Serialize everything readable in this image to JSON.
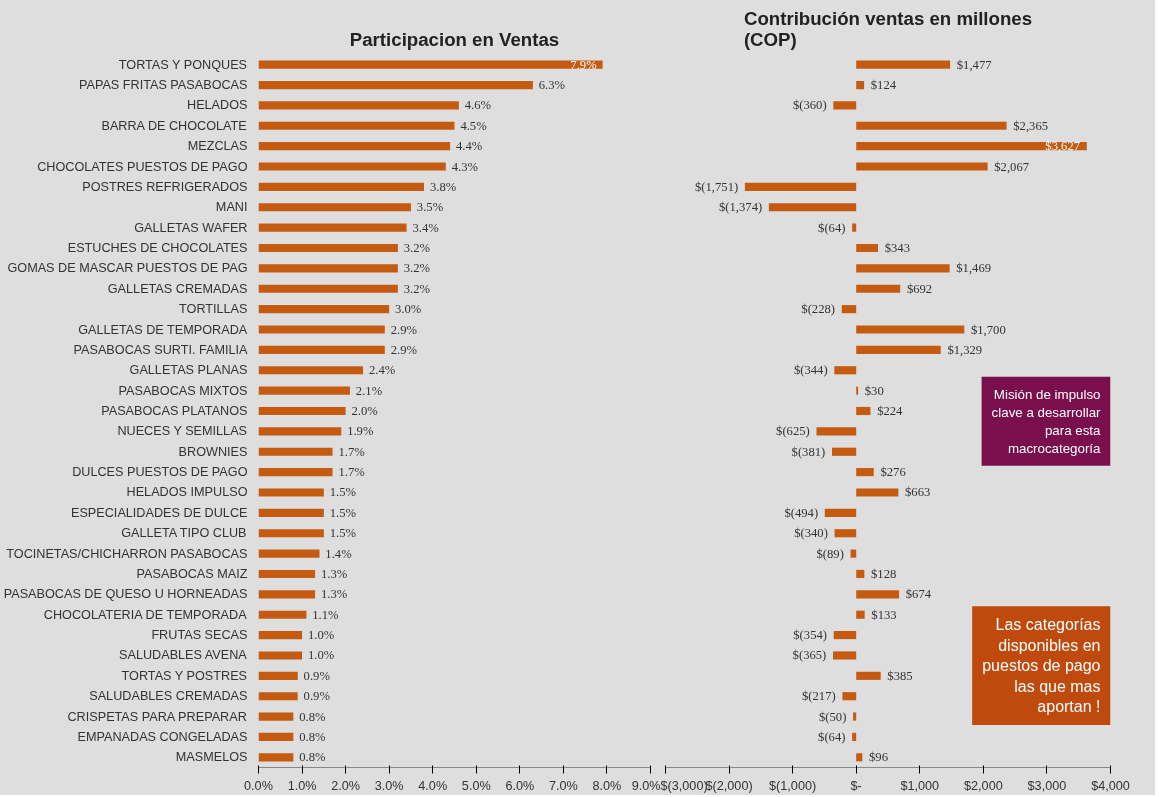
{
  "chart_data": [
    {
      "type": "bar",
      "orientation": "horizontal",
      "title": "Participacion en Ventas",
      "categories": [
        "TORTAS Y PONQUES",
        "PAPAS FRITAS PASABOCAS",
        "HELADOS",
        "BARRA DE CHOCOLATE",
        "MEZCLAS",
        "CHOCOLATES PUESTOS DE PAGO",
        "POSTRES REFRIGERADOS",
        "MANI",
        "GALLETAS WAFER",
        "ESTUCHES DE CHOCOLATES",
        "GOMAS DE MASCAR PUESTOS DE PAG",
        "GALLETAS CREMADAS",
        "TORTILLAS",
        "GALLETAS DE TEMPORADA",
        "PASABOCAS SURTI. FAMILIA",
        "GALLETAS PLANAS",
        "PASABOCAS MIXTOS",
        "PASABOCAS PLATANOS",
        "NUECES Y SEMILLAS",
        "BROWNIES",
        "DULCES PUESTOS DE PAGO",
        "HELADOS IMPULSO",
        "ESPECIALIDADES DE DULCE",
        "GALLETA TIPO CLUB",
        "TOCINETAS/CHICHARRON PASABOCAS",
        "PASABOCAS MAIZ",
        "PASABOCAS DE QUESO U HORNEADAS",
        "CHOCOLATERIA DE TEMPORADA",
        "FRUTAS SECAS",
        "SALUDABLES AVENA",
        "TORTAS Y POSTRES",
        "SALUDABLES CREMADAS",
        "CRISPETAS PARA PREPARAR",
        "EMPANADAS CONGELADAS",
        "MASMELOS"
      ],
      "color": "#c55a11",
      "values": [
        7.9,
        6.3,
        4.6,
        4.5,
        4.4,
        4.3,
        3.8,
        3.5,
        3.4,
        3.2,
        3.2,
        3.2,
        3.0,
        2.9,
        2.9,
        2.4,
        2.1,
        2.0,
        1.9,
        1.7,
        1.7,
        1.5,
        1.5,
        1.5,
        1.4,
        1.3,
        1.3,
        1.1,
        1.0,
        1.0,
        0.9,
        0.9,
        0.8,
        0.8,
        0.8
      ],
      "value_labels": [
        "7.9%",
        "6.3%",
        "4.6%",
        "4.5%",
        "4.4%",
        "4.3%",
        "3.8%",
        "3.5%",
        "3.4%",
        "3.2%",
        "3.2%",
        "3.2%",
        "3.0%",
        "2.9%",
        "2.9%",
        "2.4%",
        "2.1%",
        "2.0%",
        "1.9%",
        "1.7%",
        "1.7%",
        "1.5%",
        "1.5%",
        "1.5%",
        "1.4%",
        "1.3%",
        "1.3%",
        "1.1%",
        "1.0%",
        "1.0%",
        "0.9%",
        "0.9%",
        "0.8%",
        "0.8%",
        "0.8%"
      ],
      "xlim": [
        0,
        9
      ],
      "xticks": [
        {
          "value": 0,
          "label": "0.0%"
        },
        {
          "value": 1,
          "label": "1.0%"
        },
        {
          "value": 2,
          "label": "2.0%"
        },
        {
          "value": 3,
          "label": "3.0%"
        },
        {
          "value": 4,
          "label": "4.0%"
        },
        {
          "value": 5,
          "label": "5.0%"
        },
        {
          "value": 6,
          "label": "6.0%"
        },
        {
          "value": 7,
          "label": "7.0%"
        },
        {
          "value": 8,
          "label": "8.0%"
        },
        {
          "value": 9,
          "label": "9.0%"
        }
      ],
      "grid": false
    },
    {
      "type": "bar",
      "orientation": "horizontal",
      "title": "Contribución ventas en millones\n(COP)",
      "categories": [
        "TORTAS Y PONQUES",
        "PAPAS FRITAS PASABOCAS",
        "HELADOS",
        "BARRA DE CHOCOLATE",
        "MEZCLAS",
        "CHOCOLATES PUESTOS DE PAGO",
        "POSTRES REFRIGERADOS",
        "MANI",
        "GALLETAS WAFER",
        "ESTUCHES DE CHOCOLATES",
        "GOMAS DE MASCAR PUESTOS DE PAG",
        "GALLETAS CREMADAS",
        "TORTILLAS",
        "GALLETAS DE TEMPORADA",
        "PASABOCAS SURTI. FAMILIA",
        "GALLETAS PLANAS",
        "PASABOCAS MIXTOS",
        "PASABOCAS PLATANOS",
        "NUECES Y SEMILLAS",
        "BROWNIES",
        "DULCES PUESTOS DE PAGO",
        "HELADOS IMPULSO",
        "ESPECIALIDADES DE DULCE",
        "GALLETA TIPO CLUB",
        "TOCINETAS/CHICHARRON PASABOCAS",
        "PASABOCAS MAIZ",
        "PASABOCAS DE QUESO U HORNEADAS",
        "CHOCOLATERIA DE TEMPORADA",
        "FRUTAS SECAS",
        "SALUDABLES AVENA",
        "TORTAS Y POSTRES",
        "SALUDABLES CREMADAS",
        "CRISPETAS PARA PREPARAR",
        "EMPANADAS CONGELADAS",
        "MASMELOS"
      ],
      "color": "#c55a11",
      "values": [
        1477,
        124,
        -360,
        2365,
        3627,
        2067,
        -1751,
        -1374,
        -64,
        343,
        1469,
        692,
        -228,
        1700,
        1329,
        -344,
        30,
        224,
        -625,
        -381,
        276,
        663,
        -494,
        -340,
        -89,
        128,
        674,
        133,
        -354,
        -365,
        385,
        -217,
        -50,
        -64,
        96
      ],
      "value_labels": [
        "$1,477",
        "$124",
        "$(360)",
        "$2,365",
        "$3,627",
        "$2,067",
        "$(1,751)",
        "$(1,374)",
        "$(64)",
        "$343",
        "$1,469",
        "$692",
        "$(228)",
        "$1,700",
        "$1,329",
        "$(344)",
        "$30",
        "$224",
        "$(625)",
        "$(381)",
        "$276",
        "$663",
        "$(494)",
        "$(340)",
        "$(89)",
        "$128",
        "$674",
        "$133",
        "$(354)",
        "$(365)",
        "$385",
        "$(217)",
        "$(50)",
        "$(64)",
        "$96"
      ],
      "xlim": [
        -3000,
        4000
      ],
      "xticks": [
        {
          "value": -3000,
          "label": "$(3,000)"
        },
        {
          "value": -2000,
          "label": "$(2,000)"
        },
        {
          "value": -1000,
          "label": "$(1,000)"
        },
        {
          "value": 0,
          "label": "$-"
        },
        {
          "value": 1000,
          "label": "$1,000"
        },
        {
          "value": 2000,
          "label": "$2,000"
        },
        {
          "value": 3000,
          "label": "$3,000"
        },
        {
          "value": 4000,
          "label": "$4,000"
        }
      ],
      "tick_labels": "x",
      "annotations": [
        "Misión de impulso clave a desarrollar para esta macrocategoría",
        "Las categorías disponibles en puestos de pago las que mas aportan !"
      ],
      "grid": false
    }
  ]
}
